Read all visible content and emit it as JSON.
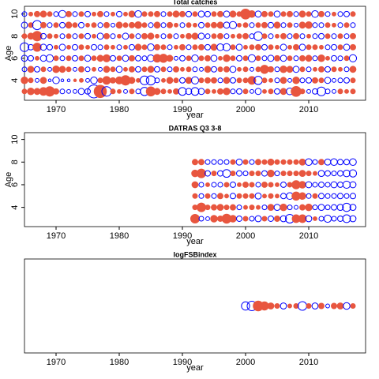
{
  "chart_data": [
    {
      "type": "bubble",
      "title": "Total catches",
      "xlabel": "year",
      "ylabel": "Age",
      "xlim": [
        1965,
        2019
      ],
      "xticks": [
        1970,
        1980,
        1990,
        2000,
        2010
      ],
      "ylim": [
        2.2,
        10.7
      ],
      "yticks": [
        4,
        6,
        8,
        10
      ],
      "pos_color": "#e8563f",
      "neg_color": "#0000ff",
      "x": [
        1965,
        1966,
        1967,
        1968,
        1969,
        1970,
        1971,
        1972,
        1973,
        1974,
        1975,
        1976,
        1977,
        1978,
        1979,
        1980,
        1981,
        1982,
        1983,
        1984,
        1985,
        1986,
        1987,
        1988,
        1989,
        1990,
        1991,
        1992,
        1993,
        1994,
        1995,
        1996,
        1997,
        1998,
        1999,
        2000,
        2001,
        2002,
        2003,
        2004,
        2005,
        2006,
        2007,
        2008,
        2009,
        2010,
        2011,
        2012,
        2013,
        2014,
        2015,
        2016,
        2017
      ],
      "rows": [
        {
          "y": 3,
          "values": [
            0.3,
            0.6,
            0.5,
            0.8,
            1.2,
            0.4,
            -0.3,
            -0.2,
            -0.2,
            -0.5,
            -0.4,
            -2.2,
            2.0,
            -1.2,
            0.3,
            0.2,
            -0.2,
            0.3,
            -0.3,
            -0.9,
            1.1,
            0.5,
            0.3,
            0.2,
            0.4,
            -0.8,
            -0.5,
            -0.8,
            -0.5,
            0.3,
            0.2,
            0.4,
            0.6,
            -0.3,
            -0.4,
            0.3,
            -0.2,
            -0.5,
            0.2,
            0.3,
            -0.4,
            0.5,
            -0.6,
            1.3,
            0.3,
            -0.2,
            -0.4,
            -1.0,
            -0.3,
            -0.2,
            0.3,
            0.2,
            0.3
          ]
        },
        {
          "y": 4,
          "values": [
            0.6,
            0.3,
            -0.2,
            0.5,
            -0.1,
            -0.6,
            -0.1,
            -0.1,
            0.1,
            0.2,
            -0.2,
            -0.6,
            0.3,
            0.8,
            0.4,
            0.7,
            1.2,
            0.5,
            0.2,
            -1.0,
            -1.1,
            -0.3,
            0.2,
            0.5,
            0.3,
            -0.4,
            0.5,
            -0.7,
            0.3,
            0.4,
            0.4,
            -0.3,
            0.5,
            -0.4,
            0.3,
            0.3,
            0.8,
            -0.9,
            0.3,
            0.2,
            -0.3,
            0.5,
            -0.2,
            0.6,
            -0.3,
            -0.4,
            0.4,
            0.3,
            -0.5,
            -0.2,
            -0.3,
            -0.4,
            0.3
          ]
        },
        {
          "y": 5,
          "values": [
            -0.3,
            0.5,
            -0.4,
            0.3,
            -0.2,
            0.6,
            0.5,
            0.3,
            -0.2,
            0.4,
            -0.3,
            0.2,
            -0.2,
            0.5,
            0.3,
            -0.5,
            0.2,
            0.4,
            -0.4,
            0.3,
            0.5,
            -0.4,
            0.3,
            -0.3,
            0.4,
            0.2,
            0.3,
            -0.3,
            -0.2,
            0.5,
            -0.4,
            0.3,
            0.4,
            -0.5,
            0.2,
            0.3,
            -0.2,
            0.3,
            0.9,
            0.4,
            -0.3,
            0.6,
            0.5,
            -0.5,
            0.3,
            -0.3,
            0.2,
            0.4,
            -0.4,
            0.3,
            0.2,
            -0.3,
            0.5
          ]
        },
        {
          "y": 6,
          "values": [
            -0.5,
            -0.4,
            0.2,
            -0.5,
            -0.7,
            0.3,
            -0.3,
            0.3,
            -0.4,
            0.3,
            -0.5,
            0.3,
            0.5,
            0.7,
            -0.4,
            0.3,
            -0.5,
            0.4,
            -0.4,
            -0.3,
            -0.6,
            0.8,
            0.9,
            0.5,
            -0.2,
            -0.4,
            0.3,
            -0.6,
            0.3,
            0.4,
            -0.5,
            0.2,
            0.6,
            0.3,
            -0.4,
            0.3,
            -0.7,
            0.3,
            -0.3,
            -0.5,
            0.4,
            -0.5,
            0.3,
            -0.3,
            0.4,
            0.5,
            -0.3,
            0.6,
            0.2,
            -0.4,
            -0.3,
            0.3,
            -0.7
          ]
        },
        {
          "y": 7,
          "values": [
            -1.0,
            -0.4,
            0.9,
            -0.5,
            -0.4,
            0.2,
            -0.5,
            0.2,
            -0.4,
            0.3,
            0.2,
            -0.4,
            -0.3,
            0.3,
            0.2,
            -0.3,
            0.2,
            -0.4,
            0.5,
            0.3,
            -0.6,
            0.4,
            0.3,
            -0.3,
            0.2,
            0.4,
            -0.3,
            0.3,
            0.4,
            -0.4,
            0.5,
            -0.6,
            -0.7,
            0.3,
            -0.5,
            0.2,
            0.3,
            0.4,
            -0.4,
            0.3,
            0.2,
            -0.5,
            0.2,
            0.4,
            -0.5,
            0.3,
            0.3,
            0.2,
            -0.3,
            -0.4,
            0.3,
            -0.5,
            0.4
          ]
        },
        {
          "y": 8,
          "values": [
            0.3,
            0.5,
            1.2,
            -0.4,
            0.3,
            0.2,
            -0.3,
            0.3,
            -0.3,
            0.3,
            -0.4,
            0.2,
            -0.5,
            0.4,
            -0.3,
            0.2,
            -0.5,
            0.3,
            -0.3,
            0.4,
            0.5,
            0.2,
            -0.3,
            0.3,
            -0.3,
            0.2,
            0.4,
            0.5,
            -0.5,
            -0.3,
            0.3,
            0.4,
            -0.3,
            0.2,
            0.3,
            0.4,
            -0.3,
            -1.0,
            0.3,
            -0.3,
            0.2,
            0.4,
            -0.3,
            0.4,
            -0.3,
            0.2,
            -0.3,
            -0.4,
            0.3,
            -0.3,
            0.3,
            -0.3,
            0.4
          ]
        },
        {
          "y": 9,
          "values": [
            -0.5,
            0.3,
            -1.1,
            0.4,
            -0.3,
            0.3,
            -0.4,
            0.5,
            0.3,
            -0.4,
            0.2,
            0.3,
            -0.3,
            0.4,
            -0.2,
            0.5,
            0.3,
            0.4,
            0.6,
            0.3,
            -0.3,
            0.5,
            -0.3,
            0.4,
            0.2,
            -0.3,
            0.3,
            0.2,
            -0.4,
            0.3,
            0.4,
            0.5,
            -0.5,
            -0.7,
            0.2,
            0.3,
            -0.3,
            0.3,
            0.4,
            -0.4,
            0.5,
            -0.3,
            0.3,
            -0.2,
            0.5,
            0.6,
            -0.3,
            -0.3,
            0.3,
            0.2,
            -0.3,
            0.3,
            -0.3
          ]
        },
        {
          "y": 10,
          "values": [
            -0.3,
            0.2,
            0.4,
            0.5,
            0.3,
            -0.3,
            -0.7,
            0.4,
            -0.3,
            0.3,
            -0.4,
            0.2,
            0.4,
            -0.3,
            0.2,
            -0.4,
            0.2,
            0.5,
            -0.6,
            0.3,
            0.3,
            0.4,
            -0.3,
            0.3,
            0.5,
            0.4,
            -0.4,
            0.3,
            -0.5,
            -0.4,
            0.3,
            0.4,
            -0.5,
            0.5,
            0.3,
            1.3,
            0.6,
            -0.5,
            0.4,
            0.3,
            -0.5,
            0.3,
            0.4,
            -0.3,
            0.5,
            0.3,
            -0.6,
            0.4,
            -0.3,
            0.2,
            -0.3,
            -0.4,
            0.3
          ]
        }
      ]
    },
    {
      "type": "bubble",
      "title": "DATRAS Q3 3-8",
      "xlabel": "year",
      "ylabel": "Age",
      "xlim": [
        1965,
        2019
      ],
      "xticks": [
        1970,
        1980,
        1990,
        2000,
        2010
      ],
      "ylim": [
        2.3,
        10.6
      ],
      "yticks": [
        4,
        6,
        8,
        10
      ],
      "pos_color": "#e8563f",
      "neg_color": "#0000ff",
      "x": [
        1992,
        1993,
        1994,
        1995,
        1996,
        1997,
        1998,
        1999,
        2000,
        2001,
        2002,
        2003,
        2004,
        2005,
        2006,
        2007,
        2008,
        2009,
        2010,
        2011,
        2012,
        2013,
        2014,
        2015,
        2016,
        2017
      ],
      "rows": [
        {
          "y": 3,
          "values": [
            1.0,
            -0.3,
            -0.2,
            0.6,
            0.4,
            1.1,
            0.6,
            -0.4,
            0.3,
            -0.3,
            -0.5,
            0.3,
            -0.4,
            0.4,
            -0.5,
            -1.0,
            0.8,
            0.8,
            -0.5,
            0.2,
            -0.3,
            -0.7,
            -0.3,
            -0.4,
            -0.8,
            -0.5
          ]
        },
        {
          "y": 4,
          "values": [
            0.3,
            1.0,
            0.3,
            0.4,
            0.5,
            0.3,
            0.4,
            -0.3,
            0.2,
            0.3,
            0.2,
            -0.3,
            0.5,
            -0.5,
            0.6,
            -0.3,
            -0.2,
            0.4,
            0.6,
            -0.3,
            -0.5,
            -0.3,
            -0.4,
            -0.5,
            -0.9,
            -0.5
          ]
        },
        {
          "y": 5,
          "values": [
            0.3,
            -0.3,
            0.3,
            -0.3,
            0.4,
            0.2,
            -0.4,
            0.3,
            0.3,
            0.3,
            -0.5,
            0.2,
            0.3,
            0.2,
            -0.4,
            -0.6,
            0.9,
            0.6,
            -0.3,
            0.3,
            -0.4,
            -0.3,
            -0.3,
            -0.4,
            -0.3,
            -0.4
          ]
        },
        {
          "y": 6,
          "values": [
            0.5,
            -0.3,
            0.2,
            -0.3,
            -0.3,
            0.3,
            -0.4,
            0.2,
            0.4,
            0.3,
            -0.3,
            0.4,
            0.3,
            0.2,
            -0.4,
            0.3,
            0.9,
            0.6,
            -0.5,
            -0.3,
            -0.4,
            -0.3,
            -0.5,
            -0.4,
            -0.7,
            -0.5
          ]
        },
        {
          "y": 7,
          "values": [
            0.6,
            1.0,
            -0.4,
            0.3,
            -0.4,
            -0.8,
            0.3,
            -0.4,
            -0.3,
            0.3,
            0.3,
            -0.4,
            0.6,
            -0.3,
            0.3,
            0.3,
            0.3,
            0.5,
            0.3,
            0.2,
            -0.5,
            -0.4,
            -0.3,
            -0.4,
            -0.6,
            -0.7
          ]
        },
        {
          "y": 8,
          "values": [
            0.4,
            0.4,
            -0.3,
            -0.3,
            -0.3,
            -0.3,
            0.3,
            -0.5,
            0.3,
            -0.3,
            0.4,
            0.3,
            0.5,
            0.3,
            0.3,
            0.3,
            0.3,
            0.5,
            -0.6,
            -0.3,
            0.4,
            -0.5,
            -0.6,
            -0.4,
            -0.4,
            -0.6
          ]
        }
      ]
    },
    {
      "type": "bubble",
      "title": "logFSBindex",
      "xlabel": "year",
      "xlim": [
        1965,
        2019
      ],
      "xticks": [
        1970,
        1980,
        1990,
        2000,
        2010
      ],
      "pos_color": "#e8563f",
      "neg_color": "#0000ff",
      "x": [
        2000,
        2001,
        2002,
        2003,
        2004,
        2005,
        2006,
        2007,
        2008,
        2009,
        2010,
        2011,
        2012,
        2013,
        2014,
        2015,
        2016,
        2017
      ],
      "rows": [
        {
          "values": [
            -0.9,
            -1.2,
            1.3,
            0.9,
            0.5,
            0.3,
            -0.5,
            0.2,
            0.3,
            -1.0,
            0.3,
            -0.5,
            0.4,
            -0.2,
            0.4,
            0.5,
            -0.6,
            0.3
          ]
        }
      ]
    }
  ]
}
